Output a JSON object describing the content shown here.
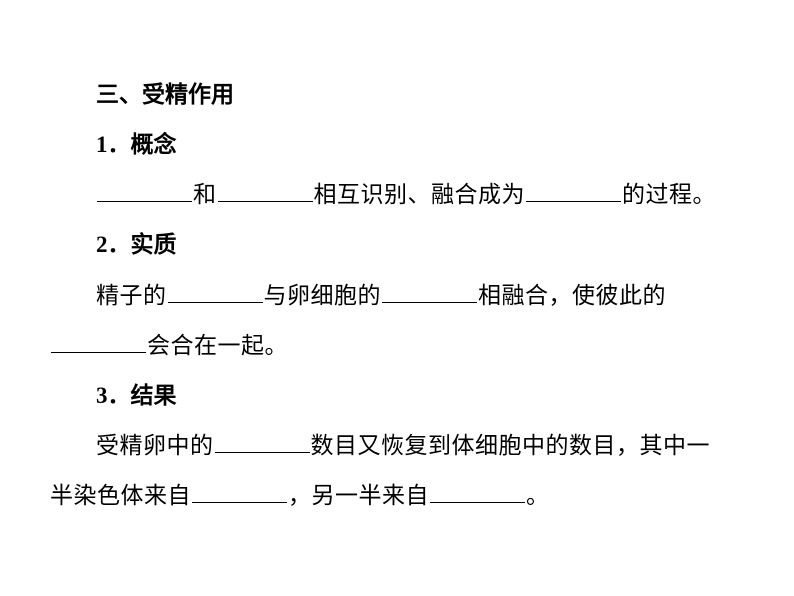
{
  "heading": "三、受精作用",
  "section1": {
    "title": "1．概念",
    "part1": "和",
    "part2": "相互识别、融合成为",
    "part3": "的过程。"
  },
  "section2": {
    "title": "2．实质",
    "part1": "精子的",
    "part2": "与卵细胞的",
    "part3": "相融合，使彼此的",
    "part4": "会合在一起。"
  },
  "section3": {
    "title": "3．结果",
    "part1": "受精卵中的",
    "part2": "数目又恢复到体细胞中的数目，其中一",
    "part3": "半染色体来自",
    "part4": "，另一半来自",
    "part5": "。"
  },
  "styling": {
    "font_size": 23,
    "line_height": 2.18,
    "text_color": "#000000",
    "background_color": "#ffffff",
    "blank_width": 95,
    "text_indent_em": 2,
    "font_family": "SimSun"
  }
}
